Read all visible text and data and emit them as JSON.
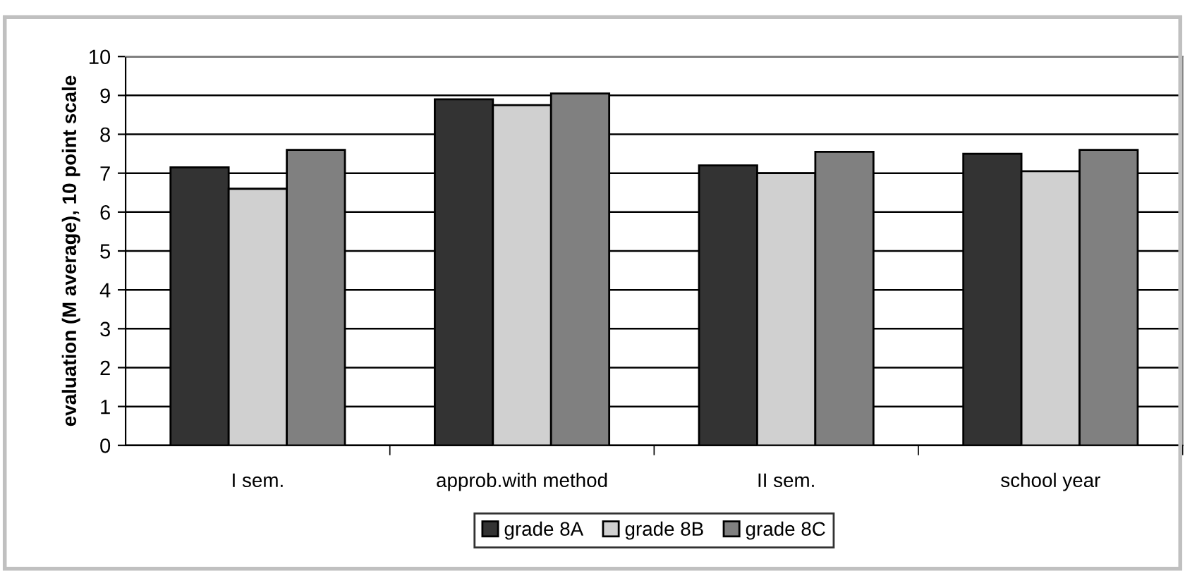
{
  "chart_data": {
    "type": "bar",
    "ylabel": "evaluation (M average), 10 point scale",
    "categories": [
      "I sem.",
      "approb.with method",
      "II sem.",
      "school year"
    ],
    "series": [
      {
        "name": "grade 8A",
        "color": "#333333",
        "values": [
          7.15,
          8.9,
          7.2,
          7.5
        ]
      },
      {
        "name": "grade 8B",
        "color": "#d0d0d0",
        "values": [
          6.6,
          8.75,
          7.0,
          7.05
        ]
      },
      {
        "name": "grade 8C",
        "color": "#808080",
        "values": [
          7.6,
          9.05,
          7.55,
          7.6
        ]
      }
    ],
    "ylim": [
      0,
      10
    ],
    "yticks": [
      0,
      1,
      2,
      3,
      4,
      5,
      6,
      7,
      8,
      9,
      10
    ],
    "grid": "y",
    "legend": "bottom"
  }
}
